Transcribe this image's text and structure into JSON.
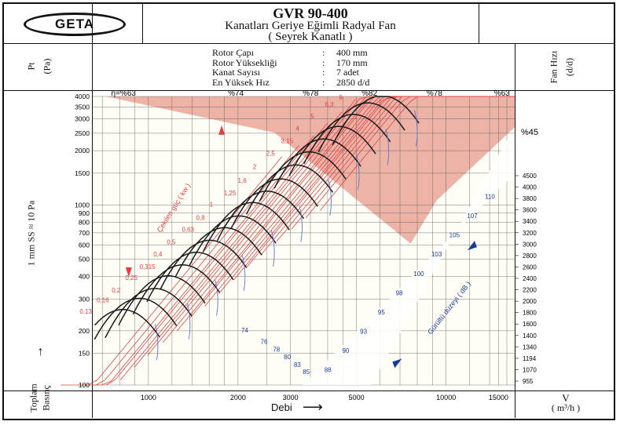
{
  "header": {
    "logo_text": "GETA",
    "title": "GVR 90-400",
    "subtitle": "Kanatları Geriye Eğimli Radyal Fan",
    "subtitle2": "( Seyrek Kanatlı )"
  },
  "specs": [
    {
      "key": "Rotor Çapı",
      "value": "400 mm"
    },
    {
      "key": "Rotor Yüksekliği",
      "value": "170 mm"
    },
    {
      "key": "Kanat Sayısı",
      "value": "7 adet"
    },
    {
      "key": "En Yüksek Hız",
      "value": "2850 d/d"
    }
  ],
  "left_labels": {
    "pt": "Pt",
    "pa": "(Pa)",
    "scale_note": "1 mm SS ≈ 10 Pa",
    "arrow": "→",
    "toplam": "Toplam",
    "basinc": "Basınç"
  },
  "right_labels": {
    "fan_hizi": "Fan Hızı",
    "dd": "(d/d)",
    "v": "V",
    "m3h": "( m³/h )"
  },
  "bottom_labels": {
    "debi": "Debi",
    "arrow": "⟶"
  },
  "colors": {
    "efficiency_shade": "#e8998c",
    "power_line": "#e04040",
    "speed_line": "#1a1a1a",
    "efficiency_curve": "#5577cc",
    "noise_text": "#1a3a9a",
    "grid": "#555555"
  },
  "chart_data": {
    "type": "line",
    "xscale": "log",
    "yscale": "log",
    "xlim": [
      650,
      17000
    ],
    "ylim": [
      100,
      4000
    ],
    "x_ticks": [
      1000,
      2000,
      3000,
      5000,
      10000,
      15000
    ],
    "x_tick_labels": [
      "1000",
      "2000",
      "3000",
      "5000",
      "10000",
      "15000"
    ],
    "y_ticks": [
      100,
      150,
      200,
      300,
      400,
      500,
      600,
      700,
      800,
      900,
      1000,
      1500,
      2000,
      2500,
      3000,
      3500,
      4000
    ],
    "y_tick_labels": [
      "100",
      "150",
      "200",
      "300",
      "400",
      "500",
      "600",
      "700",
      "800",
      "900",
      "1000",
      "1500",
      "2000",
      "2500",
      "3000",
      "3500",
      "4000"
    ],
    "xlabel": "Debi",
    "ylabel": "Toplam Basınç",
    "efficiency_top_labels": [
      "η=%63",
      "%74",
      "%78",
      "%82",
      "%78",
      "%63"
    ],
    "efficiency_top_x": [
      750,
      1850,
      3300,
      5200,
      8600,
      14500
    ],
    "efficiency_side_label": "%45",
    "efficiency_low_labels": [
      "74",
      "76",
      "78",
      "80",
      "83",
      "85"
    ],
    "efficiency_low_points": [
      [
        2050,
        196
      ],
      [
        2380,
        169
      ],
      [
        2620,
        153
      ],
      [
        2850,
        139
      ],
      [
        3080,
        126
      ],
      [
        3300,
        115
      ]
    ],
    "power_label": "Çekilen güç ( kw )",
    "power_values": [
      "0,13",
      "0,16",
      "0,2",
      "0,25",
      "0,315",
      "0,4",
      "0,5",
      "0,63",
      "0,8",
      "1",
      "1,25",
      "1,6",
      "2",
      "2,5",
      "3,15",
      "4",
      "5",
      "6,3",
      "8"
    ],
    "noise_label": "Gürültü düzeyi ( dB )",
    "noise_values": [
      "88",
      "90",
      "93",
      "95",
      "98",
      "100",
      "103",
      "105",
      "107",
      "110"
    ],
    "speed_ticks": [
      955,
      1070,
      1194,
      1340,
      1400,
      1600,
      1800,
      2000,
      2200,
      2400,
      2600,
      2800,
      3000,
      3200,
      3400,
      3600,
      3800,
      4000,
      4500
    ],
    "speed_curve_peaks": [
      [
        780,
        260
      ],
      [
        890,
        300
      ],
      [
        1000,
        340
      ],
      [
        1110,
        400
      ],
      [
        1240,
        460
      ],
      [
        1380,
        540
      ],
      [
        1530,
        630
      ],
      [
        1720,
        740
      ],
      [
        1920,
        860
      ],
      [
        2130,
        1020
      ],
      [
        2380,
        1180
      ],
      [
        2650,
        1380
      ],
      [
        2980,
        1650
      ],
      [
        3300,
        1950
      ],
      [
        3700,
        2300
      ],
      [
        4150,
        2700
      ],
      [
        4650,
        3150
      ],
      [
        5200,
        3650
      ],
      [
        5800,
        4000
      ]
    ]
  }
}
